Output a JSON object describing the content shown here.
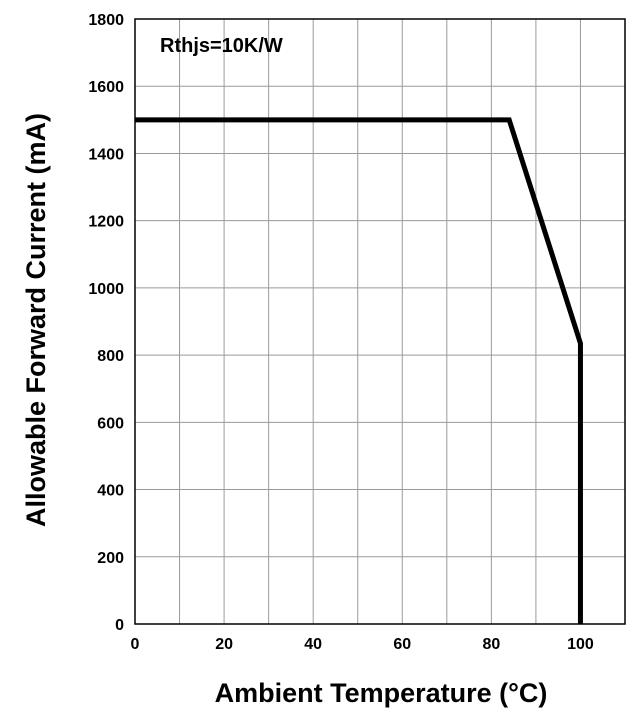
{
  "chart_data": {
    "type": "line",
    "title": "",
    "xlabel": "Ambient Temperature (°C)",
    "ylabel": "Allowable Forward Current (mA)",
    "xlim": [
      0,
      110
    ],
    "ylim": [
      0,
      1800
    ],
    "x_ticks": [
      0,
      20,
      40,
      60,
      80,
      100
    ],
    "y_ticks": [
      0,
      200,
      400,
      600,
      800,
      1000,
      1200,
      1400,
      1600,
      1800
    ],
    "x_grid_step": 10,
    "y_grid_step": 200,
    "grid": true,
    "annotations": [
      {
        "text": "Rthjs=10K/W",
        "position": "top-left"
      }
    ],
    "series": [
      {
        "x": [
          0,
          84,
          100,
          100
        ],
        "y": [
          1500,
          1500,
          835,
          0
        ],
        "color": "#000000"
      }
    ]
  }
}
